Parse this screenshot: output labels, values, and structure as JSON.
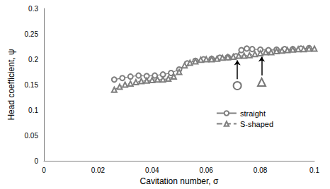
{
  "chart_data": {
    "type": "line",
    "x_label": "Cavitation number, σ",
    "y_label": "Head coefficient, ψ",
    "xlim": [
      0,
      0.1
    ],
    "xticks": [
      0,
      0.02,
      0.04,
      0.06,
      0.08,
      0.1
    ],
    "ylim": [
      0,
      0.3
    ],
    "yticks": [
      0,
      0.05,
      0.1,
      0.15,
      0.2,
      0.25,
      0.3
    ],
    "grid": false,
    "legend": "right",
    "series": [
      {
        "name": "straight",
        "color": "#7f7f7f",
        "marker": "circle",
        "line_style": "solid",
        "x": [
          0.026,
          0.029,
          0.032,
          0.035,
          0.038,
          0.041,
          0.044,
          0.047,
          0.05,
          0.053,
          0.056,
          0.059,
          0.062,
          0.065,
          0.068,
          0.071,
          0.073,
          0.075,
          0.077,
          0.08,
          0.083,
          0.086,
          0.089,
          0.092,
          0.095,
          0.098
        ],
        "values": [
          0.16,
          0.163,
          0.166,
          0.168,
          0.167,
          0.168,
          0.17,
          0.173,
          0.18,
          0.192,
          0.197,
          0.2,
          0.201,
          0.203,
          0.204,
          0.206,
          0.218,
          0.221,
          0.22,
          0.219,
          0.218,
          0.219,
          0.22,
          0.22,
          0.221,
          0.222
        ]
      },
      {
        "name": "S-shaped",
        "color": "#7f7f7f",
        "marker": "triangle",
        "line_style": "dashed",
        "x": [
          0.026,
          0.028,
          0.03,
          0.032,
          0.034,
          0.036,
          0.038,
          0.04,
          0.042,
          0.044,
          0.046,
          0.048,
          0.05,
          0.052,
          0.054,
          0.056,
          0.058,
          0.06,
          0.062,
          0.064,
          0.066,
          0.068,
          0.07,
          0.072,
          0.074,
          0.076,
          0.078,
          0.08,
          0.082,
          0.084,
          0.086,
          0.088,
          0.09,
          0.092,
          0.094,
          0.096,
          0.098,
          0.1
        ],
        "values": [
          0.14,
          0.146,
          0.15,
          0.152,
          0.155,
          0.157,
          0.158,
          0.159,
          0.16,
          0.16,
          0.162,
          0.166,
          0.175,
          0.188,
          0.193,
          0.196,
          0.199,
          0.2,
          0.2,
          0.201,
          0.203,
          0.204,
          0.205,
          0.207,
          0.207,
          0.208,
          0.21,
          0.212,
          0.214,
          0.214,
          0.216,
          0.217,
          0.218,
          0.219,
          0.22,
          0.22,
          0.221,
          0.221
        ]
      }
    ],
    "annotations": [
      {
        "x": 0.0715,
        "y": 0.198,
        "marker": "circle"
      },
      {
        "x": 0.0805,
        "y": 0.205,
        "marker": "triangle"
      }
    ]
  }
}
